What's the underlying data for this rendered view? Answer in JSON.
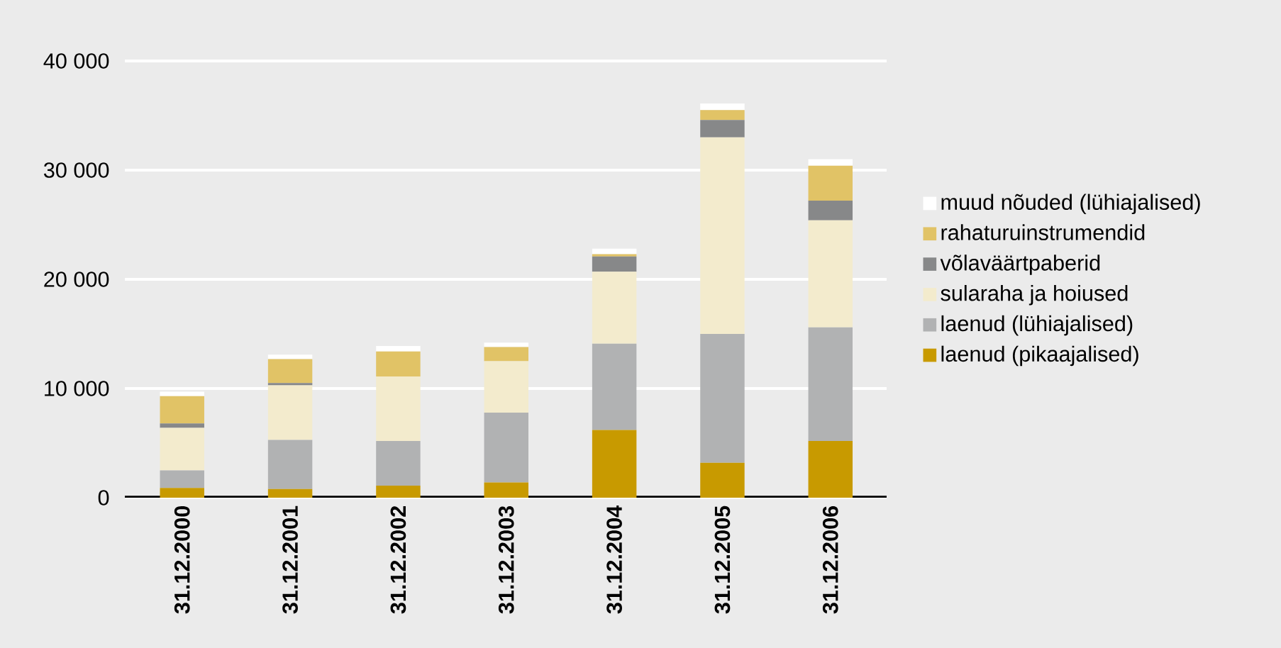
{
  "chart_data": {
    "type": "bar",
    "stacked": true,
    "grid": "y",
    "legend": "right",
    "categories": [
      "31.12.2000",
      "31.12.2001",
      "31.12.2002",
      "31.12.2003",
      "31.12.2004",
      "31.12.2005",
      "31.12.2006"
    ],
    "ylim": [
      0,
      40000
    ],
    "yticks": [
      {
        "value": 0,
        "label": "0"
      },
      {
        "value": 10000,
        "label": "10 000"
      },
      {
        "value": 20000,
        "label": "20 000"
      },
      {
        "value": 30000,
        "label": "30 000"
      },
      {
        "value": 40000,
        "label": "40 000"
      }
    ],
    "series": [
      {
        "name": "laenud (pikaajalised)",
        "color": "#c89a00",
        "values": [
          900,
          800,
          1100,
          1400,
          6200,
          3200,
          5200
        ]
      },
      {
        "name": "laenud (lühiajalised)",
        "color": "#b1b2b3",
        "values": [
          1600,
          4500,
          4100,
          6400,
          7900,
          11800,
          10400
        ]
      },
      {
        "name": "sularaha ja hoiused",
        "color": "#f3ebcd",
        "values": [
          3900,
          5000,
          5900,
          4700,
          6600,
          18000,
          9800
        ]
      },
      {
        "name": "võlaväärtpaberid",
        "color": "#878889",
        "values": [
          400,
          200,
          0,
          0,
          1400,
          1600,
          1800
        ]
      },
      {
        "name": "rahaturuinstrumendid",
        "color": "#e1c366",
        "values": [
          2500,
          2200,
          2300,
          1300,
          200,
          900,
          3200
        ]
      },
      {
        "name": "muud nõuded (lühiajalised)",
        "color": "#ffffff",
        "values": [
          400,
          400,
          500,
          400,
          500,
          600,
          600
        ]
      }
    ]
  }
}
